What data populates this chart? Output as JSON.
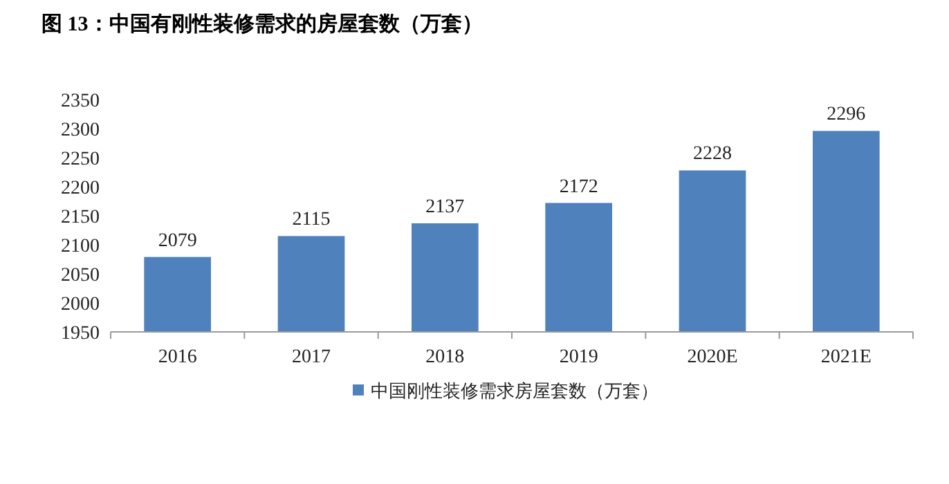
{
  "chart_data": {
    "type": "bar",
    "title": "图 13：中国有刚性装修需求的房屋套数（万套）",
    "categories": [
      "2016",
      "2017",
      "2018",
      "2019",
      "2020E",
      "2021E"
    ],
    "series": [
      {
        "name": "中国刚性装修需求房屋套数（万套）",
        "color": "#4f81bd",
        "values": [
          2079,
          2115,
          2137,
          2172,
          2228,
          2296
        ]
      }
    ],
    "ylim": [
      1950,
      2350
    ],
    "yticks": [
      1950,
      2000,
      2050,
      2100,
      2150,
      2200,
      2250,
      2300,
      2350
    ],
    "data_labels": true,
    "legend": "bottom"
  }
}
